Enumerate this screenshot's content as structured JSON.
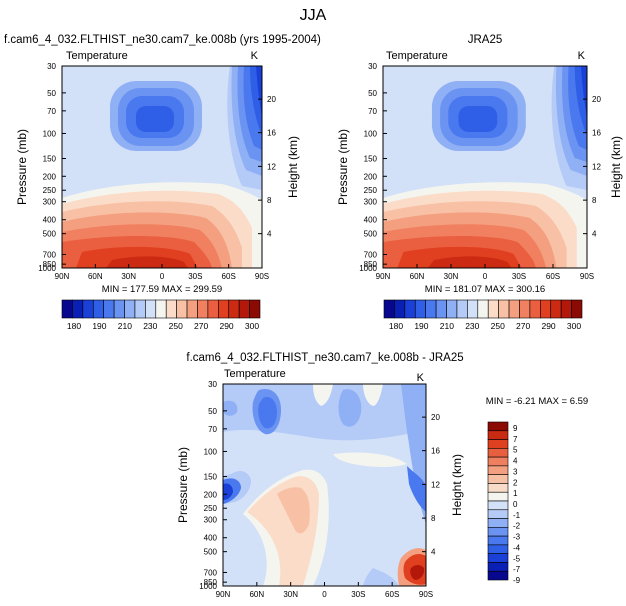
{
  "page_title": "JJA",
  "colors": {
    "temperature_levels": [
      "#08088f",
      "#0a1fb4",
      "#1a40d8",
      "#2f5fe6",
      "#4a78ee",
      "#6a93f2",
      "#90b0f5",
      "#b4caf7",
      "#d2e0f8",
      "#f5f5f0",
      "#fbdcc8",
      "#f8c0a4",
      "#f4a080",
      "#f08060",
      "#ea5f40",
      "#e04020",
      "#cc2a12",
      "#b4180a",
      "#8c0a04"
    ],
    "difference_levels": [
      "#08088f",
      "#0a1fb4",
      "#1a40d8",
      "#2f5fe6",
      "#4a78ee",
      "#6a93f2",
      "#90b0f5",
      "#b4caf7",
      "#d2e0f8",
      "#f5f5f0",
      "#f8dcc8",
      "#f6c0a4",
      "#f2a080",
      "#ee8060",
      "#e85f40",
      "#de4020",
      "#c82a12",
      "#8c0a04"
    ]
  },
  "chart_data": [
    {
      "type": "heatmap",
      "title": "f.cam6_4_032.FLTHIST_ne30.cam7_ke.008b (yrs 1995-2004)",
      "left_label": "Temperature",
      "right_label": "K",
      "ylabel": "Pressure (mb)",
      "y2label": "Height (km)",
      "x_ticks": [
        "90N",
        "60N",
        "30N",
        "0",
        "30S",
        "60S",
        "90S"
      ],
      "y_ticks": [
        "30",
        "50",
        "70",
        "100",
        "150",
        "200",
        "250",
        "300",
        "400",
        "500",
        "700",
        "850",
        "1000"
      ],
      "height_ticks": [
        "20",
        "16",
        "12",
        "8",
        "4"
      ],
      "stats": "MIN = 177.59  MAX = 299.59",
      "min": 177.59,
      "max": 299.59,
      "colorbar_labels": [
        "180",
        "190",
        "210",
        "230",
        "250",
        "270",
        "290",
        "300"
      ]
    },
    {
      "type": "heatmap",
      "title": "JRA25",
      "left_label": "Temperature",
      "right_label": "K",
      "ylabel": "Pressure (mb)",
      "y2label": "Height (km)",
      "x_ticks": [
        "90N",
        "60N",
        "30N",
        "0",
        "30S",
        "60S",
        "90S"
      ],
      "y_ticks": [
        "30",
        "50",
        "70",
        "100",
        "150",
        "200",
        "250",
        "300",
        "400",
        "500",
        "700",
        "850",
        "1000"
      ],
      "height_ticks": [
        "20",
        "16",
        "12",
        "8",
        "4"
      ],
      "stats": "MIN = 181.07  MAX = 300.16",
      "min": 181.07,
      "max": 300.16,
      "colorbar_labels": [
        "180",
        "190",
        "210",
        "230",
        "250",
        "270",
        "290",
        "300"
      ]
    },
    {
      "type": "heatmap",
      "title": "f.cam6_4_032.FLTHIST_ne30.cam7_ke.008b - JRA25",
      "left_label": "Temperature",
      "right_label": "K",
      "ylabel": "Pressure (mb)",
      "y2label": "Height (km)",
      "x_ticks": [
        "90N",
        "60N",
        "30N",
        "0",
        "30S",
        "60S",
        "90S"
      ],
      "y_ticks": [
        "30",
        "50",
        "70",
        "100",
        "150",
        "200",
        "250",
        "300",
        "400",
        "500",
        "700",
        "850",
        "1000"
      ],
      "height_ticks": [
        "20",
        "16",
        "12",
        "8",
        "4"
      ],
      "stats": "MIN = -6.21  MAX =  6.59",
      "min": -6.21,
      "max": 6.59,
      "colorbar_labels": [
        "9",
        "7",
        "5",
        "4",
        "3",
        "2",
        "1",
        "0",
        "-1",
        "-2",
        "-3",
        "-4",
        "-5",
        "-7",
        "-9"
      ]
    }
  ]
}
